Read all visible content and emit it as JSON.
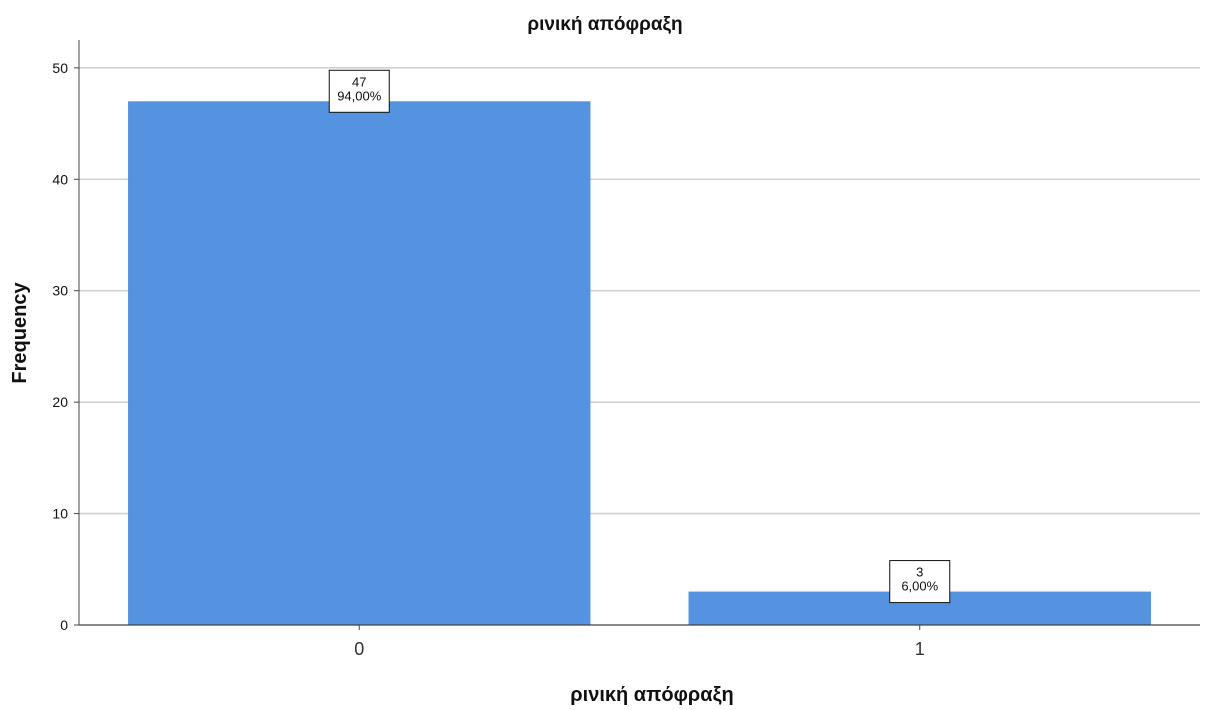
{
  "chart_data": {
    "type": "bar",
    "title": "ρινική απόφραξη",
    "xlabel": "ρινική απόφραξη",
    "ylabel": "Frequency",
    "categories": [
      "0",
      "1"
    ],
    "values": [
      47,
      3
    ],
    "data_labels": [
      {
        "count": "47",
        "percent": "94,00%"
      },
      {
        "count": "3",
        "percent": "6,00%"
      }
    ],
    "ylim": [
      0,
      52.5
    ],
    "yticks": [
      0,
      10,
      20,
      30,
      40,
      50
    ],
    "grid": "horizontal",
    "bar_color": "#5592e0"
  }
}
